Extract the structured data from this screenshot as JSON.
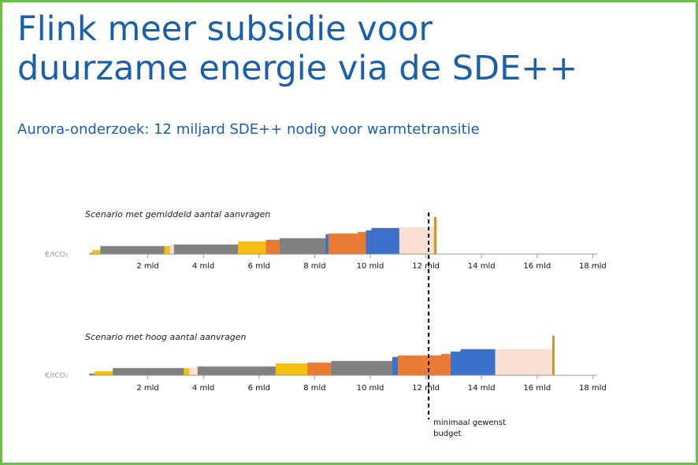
{
  "slide": {
    "title_line1": "Flink meer subsidie voor",
    "title_line2": "duurzame energie via de SDE++",
    "subtitle": "Aurora-onderzoek: 12 miljard SDE++ nodig voor warmtetransitie",
    "border_color": "#6abf4b",
    "title_color": "#1b5fa8"
  },
  "chart_data": {
    "type": "bar",
    "style": "cost-curve (variable-width bars, stepped)",
    "ylabel": "€/tCO₂",
    "x_ticks": [
      "2 mld",
      "4 mld",
      "6 mld",
      "8 mld",
      "10 mld",
      "12 mld",
      "14 mld",
      "16 mld",
      "18 mld"
    ],
    "x_tick_values": [
      2,
      4,
      6,
      8,
      10,
      12,
      14,
      16,
      18
    ],
    "xlim": [
      0,
      18
    ],
    "x_unit": "mld",
    "threshold": {
      "x": 12.1,
      "label_line1": "minimaal gewenst",
      "label_line2": "budget",
      "style": "dashed"
    },
    "colors": {
      "yellow": "#f5bf0f",
      "grey": "#808080",
      "peach": "#f8e0d2",
      "orange": "#ea7b36",
      "blue": "#3d70c8",
      "gold": "#c49a2a"
    },
    "scenarios": [
      {
        "name": "Scenario met gemiddeld aantal aanvragen",
        "segments": [
          {
            "x0": -0.1,
            "x1": 0.0,
            "y": 1,
            "color": "grey"
          },
          {
            "x0": 0.0,
            "x1": 0.3,
            "y": 5,
            "color": "yellow"
          },
          {
            "x0": 0.3,
            "x1": 2.6,
            "y": 10,
            "color": "grey"
          },
          {
            "x0": 2.6,
            "x1": 2.8,
            "y": 10,
            "color": "yellow"
          },
          {
            "x0": 2.8,
            "x1": 2.95,
            "y": 12,
            "color": "peach"
          },
          {
            "x0": 2.95,
            "x1": 5.25,
            "y": 12,
            "color": "grey"
          },
          {
            "x0": 5.25,
            "x1": 6.25,
            "y": 16,
            "color": "yellow"
          },
          {
            "x0": 6.25,
            "x1": 6.75,
            "y": 18,
            "color": "orange"
          },
          {
            "x0": 6.75,
            "x1": 8.4,
            "y": 20,
            "color": "grey"
          },
          {
            "x0": 8.4,
            "x1": 8.5,
            "y": 25,
            "color": "blue"
          },
          {
            "x0": 8.5,
            "x1": 9.55,
            "y": 26,
            "color": "orange"
          },
          {
            "x0": 9.55,
            "x1": 9.85,
            "y": 28,
            "color": "orange"
          },
          {
            "x0": 9.85,
            "x1": 10.05,
            "y": 30,
            "color": "blue"
          },
          {
            "x0": 10.05,
            "x1": 11.05,
            "y": 33,
            "color": "blue"
          },
          {
            "x0": 11.05,
            "x1": 12.3,
            "y": 34,
            "color": "peach"
          },
          {
            "x0": 12.3,
            "x1": 12.38,
            "y": 47,
            "color": "gold"
          }
        ]
      },
      {
        "name": "Scenario met hoog aantal aanvragen",
        "segments": [
          {
            "x0": -0.1,
            "x1": 0.1,
            "y": 2,
            "color": "grey"
          },
          {
            "x0": 0.1,
            "x1": 0.75,
            "y": 5,
            "color": "yellow"
          },
          {
            "x0": 0.75,
            "x1": 3.3,
            "y": 9,
            "color": "grey"
          },
          {
            "x0": 3.3,
            "x1": 3.5,
            "y": 9,
            "color": "yellow"
          },
          {
            "x0": 3.5,
            "x1": 3.8,
            "y": 10,
            "color": "peach"
          },
          {
            "x0": 3.8,
            "x1": 6.6,
            "y": 11,
            "color": "grey"
          },
          {
            "x0": 6.6,
            "x1": 7.75,
            "y": 15,
            "color": "yellow"
          },
          {
            "x0": 7.75,
            "x1": 8.6,
            "y": 16,
            "color": "orange"
          },
          {
            "x0": 8.6,
            "x1": 10.8,
            "y": 18,
            "color": "grey"
          },
          {
            "x0": 10.8,
            "x1": 11.0,
            "y": 23,
            "color": "blue"
          },
          {
            "x0": 11.0,
            "x1": 12.55,
            "y": 25,
            "color": "orange"
          },
          {
            "x0": 12.55,
            "x1": 12.9,
            "y": 27,
            "color": "orange"
          },
          {
            "x0": 12.9,
            "x1": 13.25,
            "y": 30,
            "color": "blue"
          },
          {
            "x0": 13.25,
            "x1": 14.5,
            "y": 33,
            "color": "blue"
          },
          {
            "x0": 14.5,
            "x1": 16.55,
            "y": 33,
            "color": "peach"
          },
          {
            "x0": 16.55,
            "x1": 16.62,
            "y": 50,
            "color": "gold"
          }
        ]
      }
    ]
  }
}
